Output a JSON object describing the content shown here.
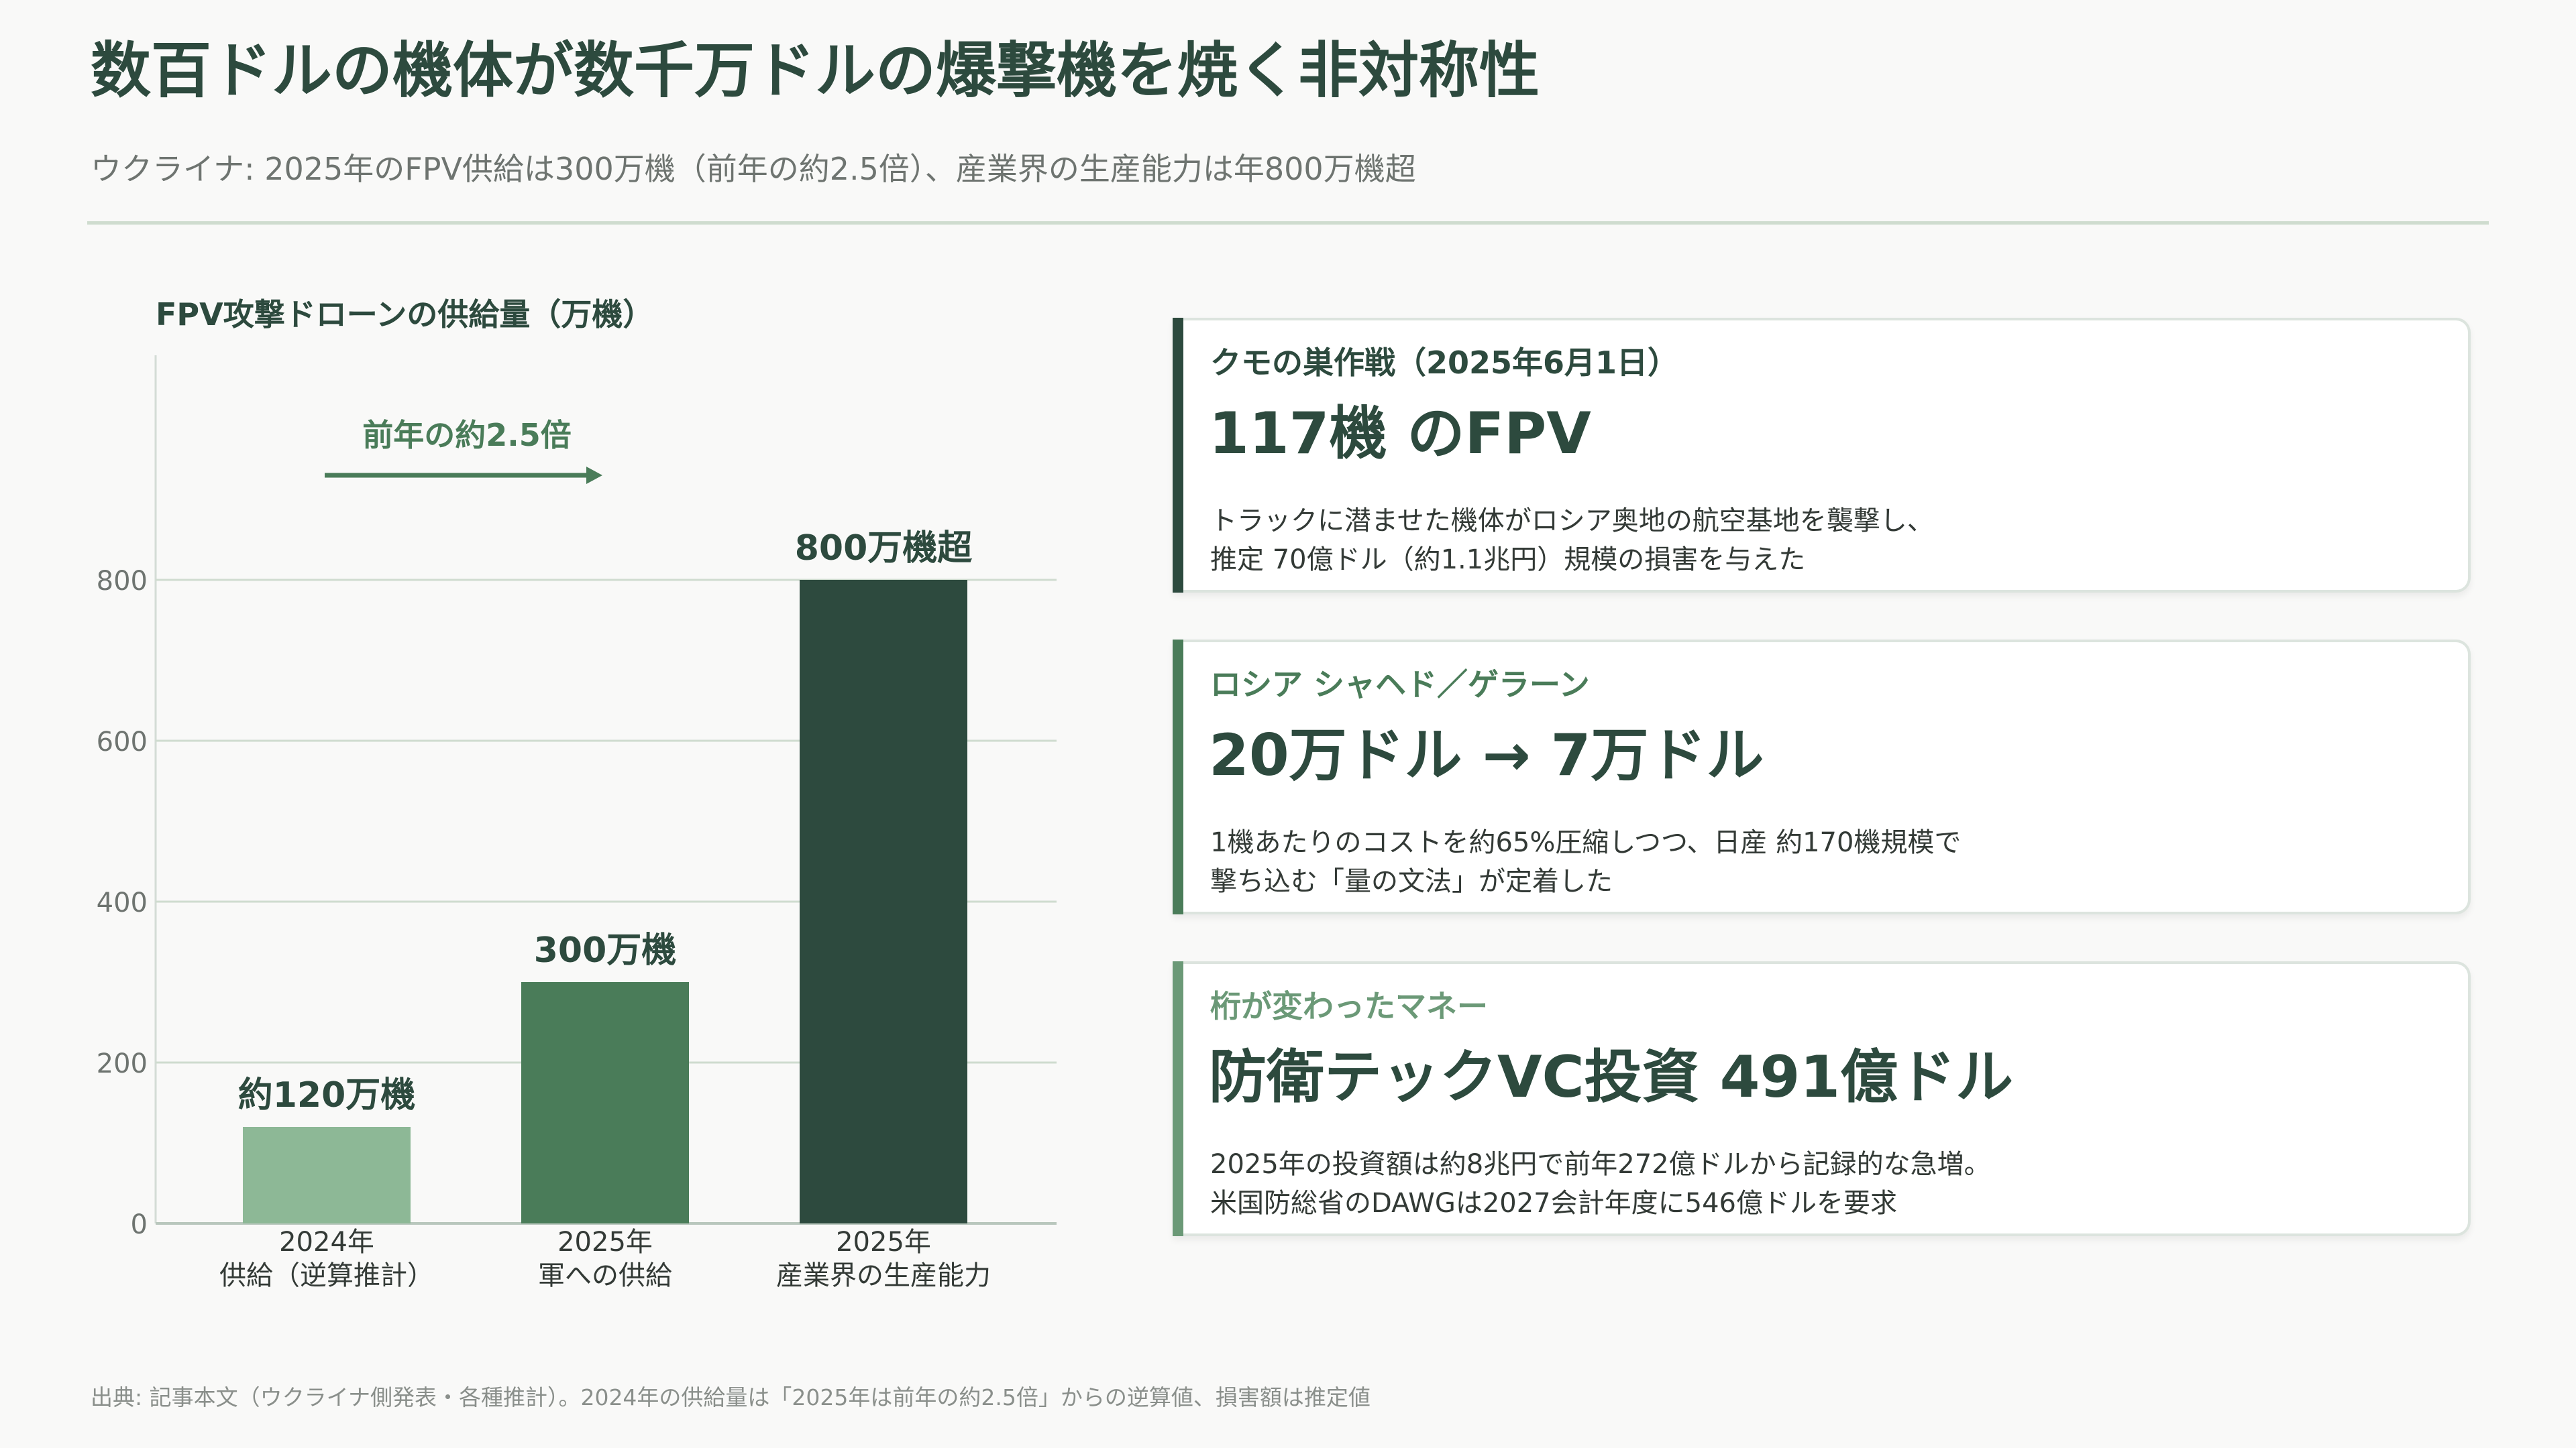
{
  "header": {
    "title": "数百ドルの機体が数千万ドルの爆撃機を焼く非対称性",
    "subtitle": "ウクライナ: 2025年のFPV供給は300万機（前年の約2.5倍）、産業界の生産能力は年800万機超"
  },
  "chart_data": {
    "type": "bar",
    "title": "FPV攻撃ドローンの供給量（万機）",
    "categories": [
      [
        "2024年",
        "供給（逆算推計）"
      ],
      [
        "2025年",
        "軍への供給"
      ],
      [
        "2025年",
        "産業界の生産能力"
      ]
    ],
    "values": [
      120,
      300,
      800
    ],
    "value_labels": [
      "約120万機",
      "300万機",
      "800万機超"
    ],
    "bar_colors": [
      "#8db896",
      "#4a7c59",
      "#2d4a3e"
    ],
    "ylim": [
      0,
      800
    ],
    "yticks": [
      0,
      200,
      400,
      600,
      800
    ],
    "grid": true,
    "annotation": "前年の約2.5倍"
  },
  "cards": [
    {
      "kicker": "クモの巣作戦（2025年6月1日）",
      "headline": "117機 のFPV",
      "lines": [
        "トラックに潜ませた機体がロシア奥地の航空基地を襲撃し、",
        "推定 70億ドル（約1.1兆円）規模の損害を与えた"
      ],
      "accent": "#2d4a3e",
      "kicker_color": "#2d4a3e"
    },
    {
      "kicker": "ロシア シャヘド／ゲラーン",
      "headline": "20万ドル → 7万ドル",
      "lines": [
        "1機あたりのコストを約65%圧縮しつつ、日産 約170機規模で",
        "撃ち込む「量の文法」が定着した"
      ],
      "accent": "#4a7c59",
      "kicker_color": "#4a7c59"
    },
    {
      "kicker": "桁が変わったマネー",
      "headline": "防衛テックVC投資 491億ドル",
      "lines": [
        "2025年の投資額は約8兆円で前年272億ドルから記録的な急増。",
        "米国防総省のDAWGは2027会計年度に546億ドルを要求"
      ],
      "accent": "#6b9977",
      "kicker_color": "#6b9977"
    }
  ],
  "footer": {
    "source": "出典: 記事本文（ウクライナ側発表・各種推計）。2024年の供給量は「2025年は前年の約2.5倍」からの逆算値、損害額は推定値"
  }
}
